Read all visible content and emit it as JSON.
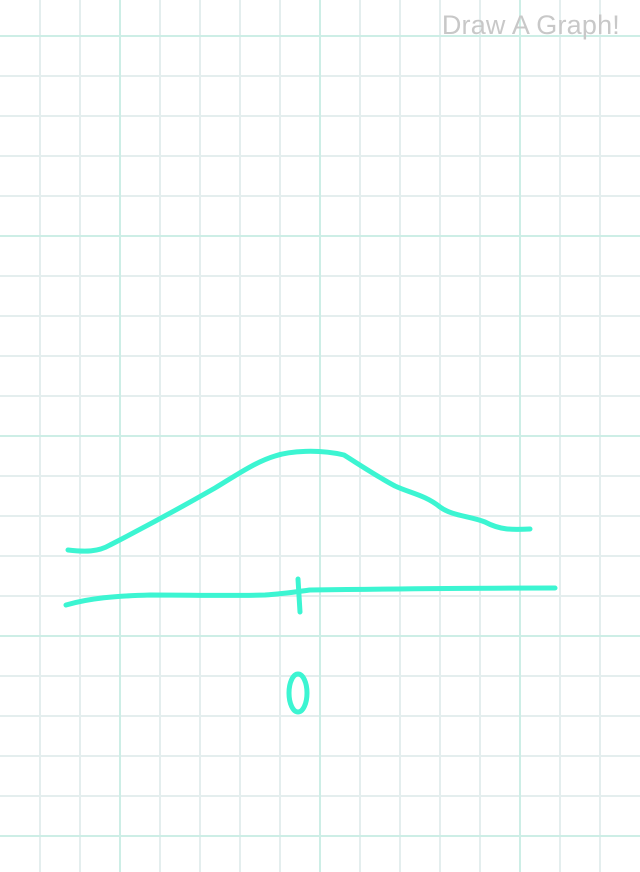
{
  "app": {
    "title": "Draw A Graph!"
  },
  "colors": {
    "background": "#ffffff",
    "grid_minor": "#e4eeee",
    "grid_major": "#cdeee6",
    "ink": "#3cf5d2",
    "title": "#c8c8c8"
  },
  "sketch": {
    "label_text": "0"
  }
}
